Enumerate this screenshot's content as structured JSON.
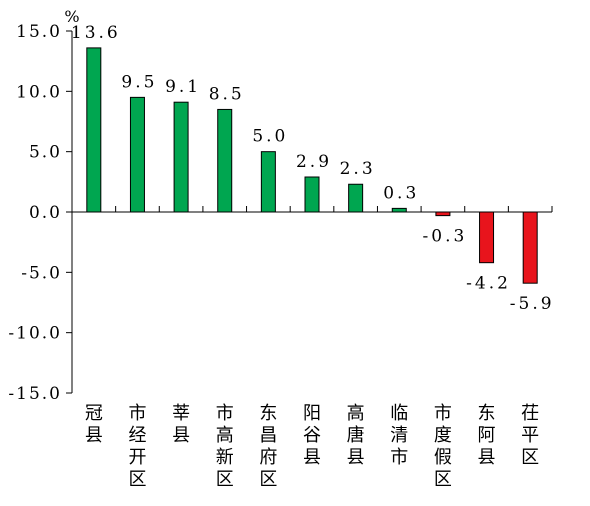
{
  "chart_data": {
    "type": "bar",
    "unit": "%",
    "title": "",
    "xlabel": "",
    "ylabel": "",
    "ylim": [
      -15,
      15
    ],
    "yticks": [
      "15.0",
      "10.0",
      "5.0",
      "0.0",
      "-5.0",
      "-10.0",
      "-15.0"
    ],
    "ytick_values": [
      15,
      10,
      5,
      0,
      -5,
      -10,
      -15
    ],
    "grid": false,
    "categories": [
      "冠县",
      "市经开区",
      "莘县",
      "市高新区",
      "东昌府区",
      "阳谷县",
      "高唐县",
      "临清市",
      "市度假区",
      "东阿县",
      "茌平区"
    ],
    "values": [
      13.6,
      9.5,
      9.1,
      8.5,
      5.0,
      2.9,
      2.3,
      0.3,
      -0.3,
      -4.2,
      -5.9
    ],
    "value_labels": [
      "13.6",
      "9.5",
      "9.1",
      "8.5",
      "5.0",
      "2.9",
      "2.3",
      "0.3",
      "-0.3",
      "-4.2",
      "-5.9"
    ],
    "colors": {
      "positive": "#00a650",
      "negative": "#e8141c",
      "axis": "#000000"
    }
  }
}
